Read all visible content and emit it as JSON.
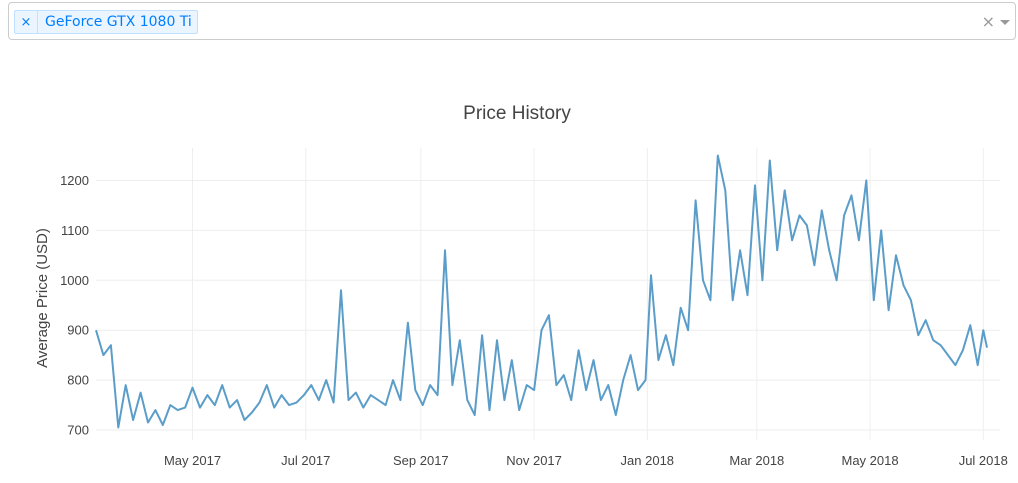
{
  "selector": {
    "selected_tag": "GeForce GTX 1080 Ti",
    "remove_symbol": "×",
    "clear_symbol": "×"
  },
  "chart_data": {
    "type": "line",
    "title": "Price History",
    "xlabel": "",
    "ylabel": "Average Price (USD)",
    "x_tick_labels": [
      "May 2017",
      "Jul 2017",
      "Sep 2017",
      "Nov 2017",
      "Jan 2018",
      "Mar 2018",
      "May 2018",
      "Jul 2018"
    ],
    "x_tick_dates": [
      "2017-05-01",
      "2017-07-01",
      "2017-09-01",
      "2017-11-01",
      "2018-01-01",
      "2018-03-01",
      "2018-05-01",
      "2018-07-01"
    ],
    "y_ticks": [
      700,
      800,
      900,
      1000,
      1100,
      1200
    ],
    "xlim": [
      "2017-03-10",
      "2018-07-10"
    ],
    "ylim": [
      680,
      1265
    ],
    "grid": true,
    "line_color": "#5b9dc9",
    "series": [
      {
        "x": [
          "2017-03-10",
          "2017-03-14",
          "2017-03-18",
          "2017-03-22",
          "2017-03-26",
          "2017-03-30",
          "2017-04-03",
          "2017-04-07",
          "2017-04-11",
          "2017-04-15",
          "2017-04-19",
          "2017-04-23",
          "2017-04-27",
          "2017-05-01",
          "2017-05-05",
          "2017-05-09",
          "2017-05-13",
          "2017-05-17",
          "2017-05-21",
          "2017-05-25",
          "2017-05-29",
          "2017-06-02",
          "2017-06-06",
          "2017-06-10",
          "2017-06-14",
          "2017-06-18",
          "2017-06-22",
          "2017-06-26",
          "2017-06-30",
          "2017-07-04",
          "2017-07-08",
          "2017-07-12",
          "2017-07-16",
          "2017-07-20",
          "2017-07-24",
          "2017-07-28",
          "2017-08-01",
          "2017-08-05",
          "2017-08-09",
          "2017-08-13",
          "2017-08-17",
          "2017-08-21",
          "2017-08-25",
          "2017-08-29",
          "2017-09-02",
          "2017-09-06",
          "2017-09-10",
          "2017-09-14",
          "2017-09-18",
          "2017-09-22",
          "2017-09-26",
          "2017-09-30",
          "2017-10-04",
          "2017-10-08",
          "2017-10-12",
          "2017-10-16",
          "2017-10-20",
          "2017-10-24",
          "2017-10-28",
          "2017-11-01",
          "2017-11-05",
          "2017-11-09",
          "2017-11-13",
          "2017-11-17",
          "2017-11-21",
          "2017-11-25",
          "2017-11-29",
          "2017-12-03",
          "2017-12-07",
          "2017-12-11",
          "2017-12-15",
          "2017-12-19",
          "2017-12-23",
          "2017-12-27",
          "2017-12-31",
          "2018-01-03",
          "2018-01-07",
          "2018-01-11",
          "2018-01-15",
          "2018-01-19",
          "2018-01-23",
          "2018-01-27",
          "2018-01-31",
          "2018-02-04",
          "2018-02-08",
          "2018-02-12",
          "2018-02-16",
          "2018-02-20",
          "2018-02-24",
          "2018-02-28",
          "2018-03-04",
          "2018-03-08",
          "2018-03-12",
          "2018-03-16",
          "2018-03-20",
          "2018-03-24",
          "2018-03-28",
          "2018-04-01",
          "2018-04-05",
          "2018-04-09",
          "2018-04-13",
          "2018-04-17",
          "2018-04-21",
          "2018-04-25",
          "2018-04-29",
          "2018-05-03",
          "2018-05-07",
          "2018-05-11",
          "2018-05-15",
          "2018-05-19",
          "2018-05-23",
          "2018-05-27",
          "2018-05-31",
          "2018-06-04",
          "2018-06-08",
          "2018-06-12",
          "2018-06-16",
          "2018-06-20",
          "2018-06-24",
          "2018-06-28",
          "2018-07-01",
          "2018-07-03"
        ],
        "y": [
          900,
          850,
          870,
          705,
          790,
          720,
          775,
          715,
          740,
          710,
          750,
          740,
          745,
          785,
          745,
          770,
          750,
          790,
          745,
          760,
          720,
          735,
          755,
          790,
          745,
          770,
          750,
          755,
          770,
          790,
          760,
          800,
          755,
          980,
          760,
          775,
          745,
          770,
          760,
          750,
          800,
          760,
          915,
          780,
          750,
          790,
          770,
          1060,
          790,
          880,
          760,
          730,
          890,
          740,
          880,
          760,
          840,
          740,
          790,
          780,
          900,
          930,
          790,
          810,
          760,
          860,
          780,
          840,
          760,
          790,
          730,
          800,
          850,
          780,
          800,
          1010,
          840,
          890,
          830,
          945,
          900,
          1160,
          1000,
          960,
          1250,
          1180,
          960,
          1060,
          970,
          1190,
          1000,
          1240,
          1060,
          1180,
          1080,
          1130,
          1110,
          1030,
          1140,
          1060,
          1000,
          1130,
          1170,
          1080,
          1200,
          960,
          1100,
          940,
          1050,
          990,
          960,
          890,
          920,
          880,
          870,
          850,
          830,
          860,
          910,
          830,
          900,
          865
        ]
      }
    ]
  }
}
